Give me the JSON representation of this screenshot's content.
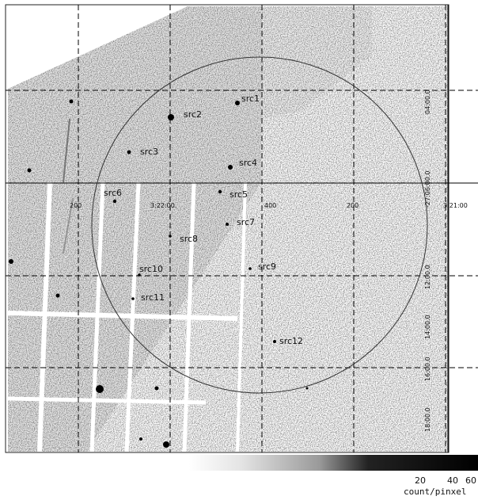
{
  "sources": [
    {
      "label": "src1",
      "x": 0.0,
      "y": 0.0
    },
    {
      "label": "src2"
    },
    {
      "label": "src3"
    },
    {
      "label": "src4"
    },
    {
      "label": "src5"
    },
    {
      "label": "src6"
    },
    {
      "label": "src7"
    },
    {
      "label": "src8"
    },
    {
      "label": "src9"
    },
    {
      "label": "src10"
    },
    {
      "label": "src11"
    },
    {
      "label": "src12"
    }
  ],
  "ra_ticks": [
    "200",
    "3:22:00.",
    "400",
    "200",
    "3:21:00"
  ],
  "dec_ticks": [
    "04:00.0",
    "-27:06:00.0",
    "12:00.0",
    "14:00.0",
    "16:00.0",
    "18:00.0"
  ],
  "colorbar": {
    "ticks": [
      "20",
      "40",
      "60"
    ],
    "unit": "count/pinxel"
  }
}
